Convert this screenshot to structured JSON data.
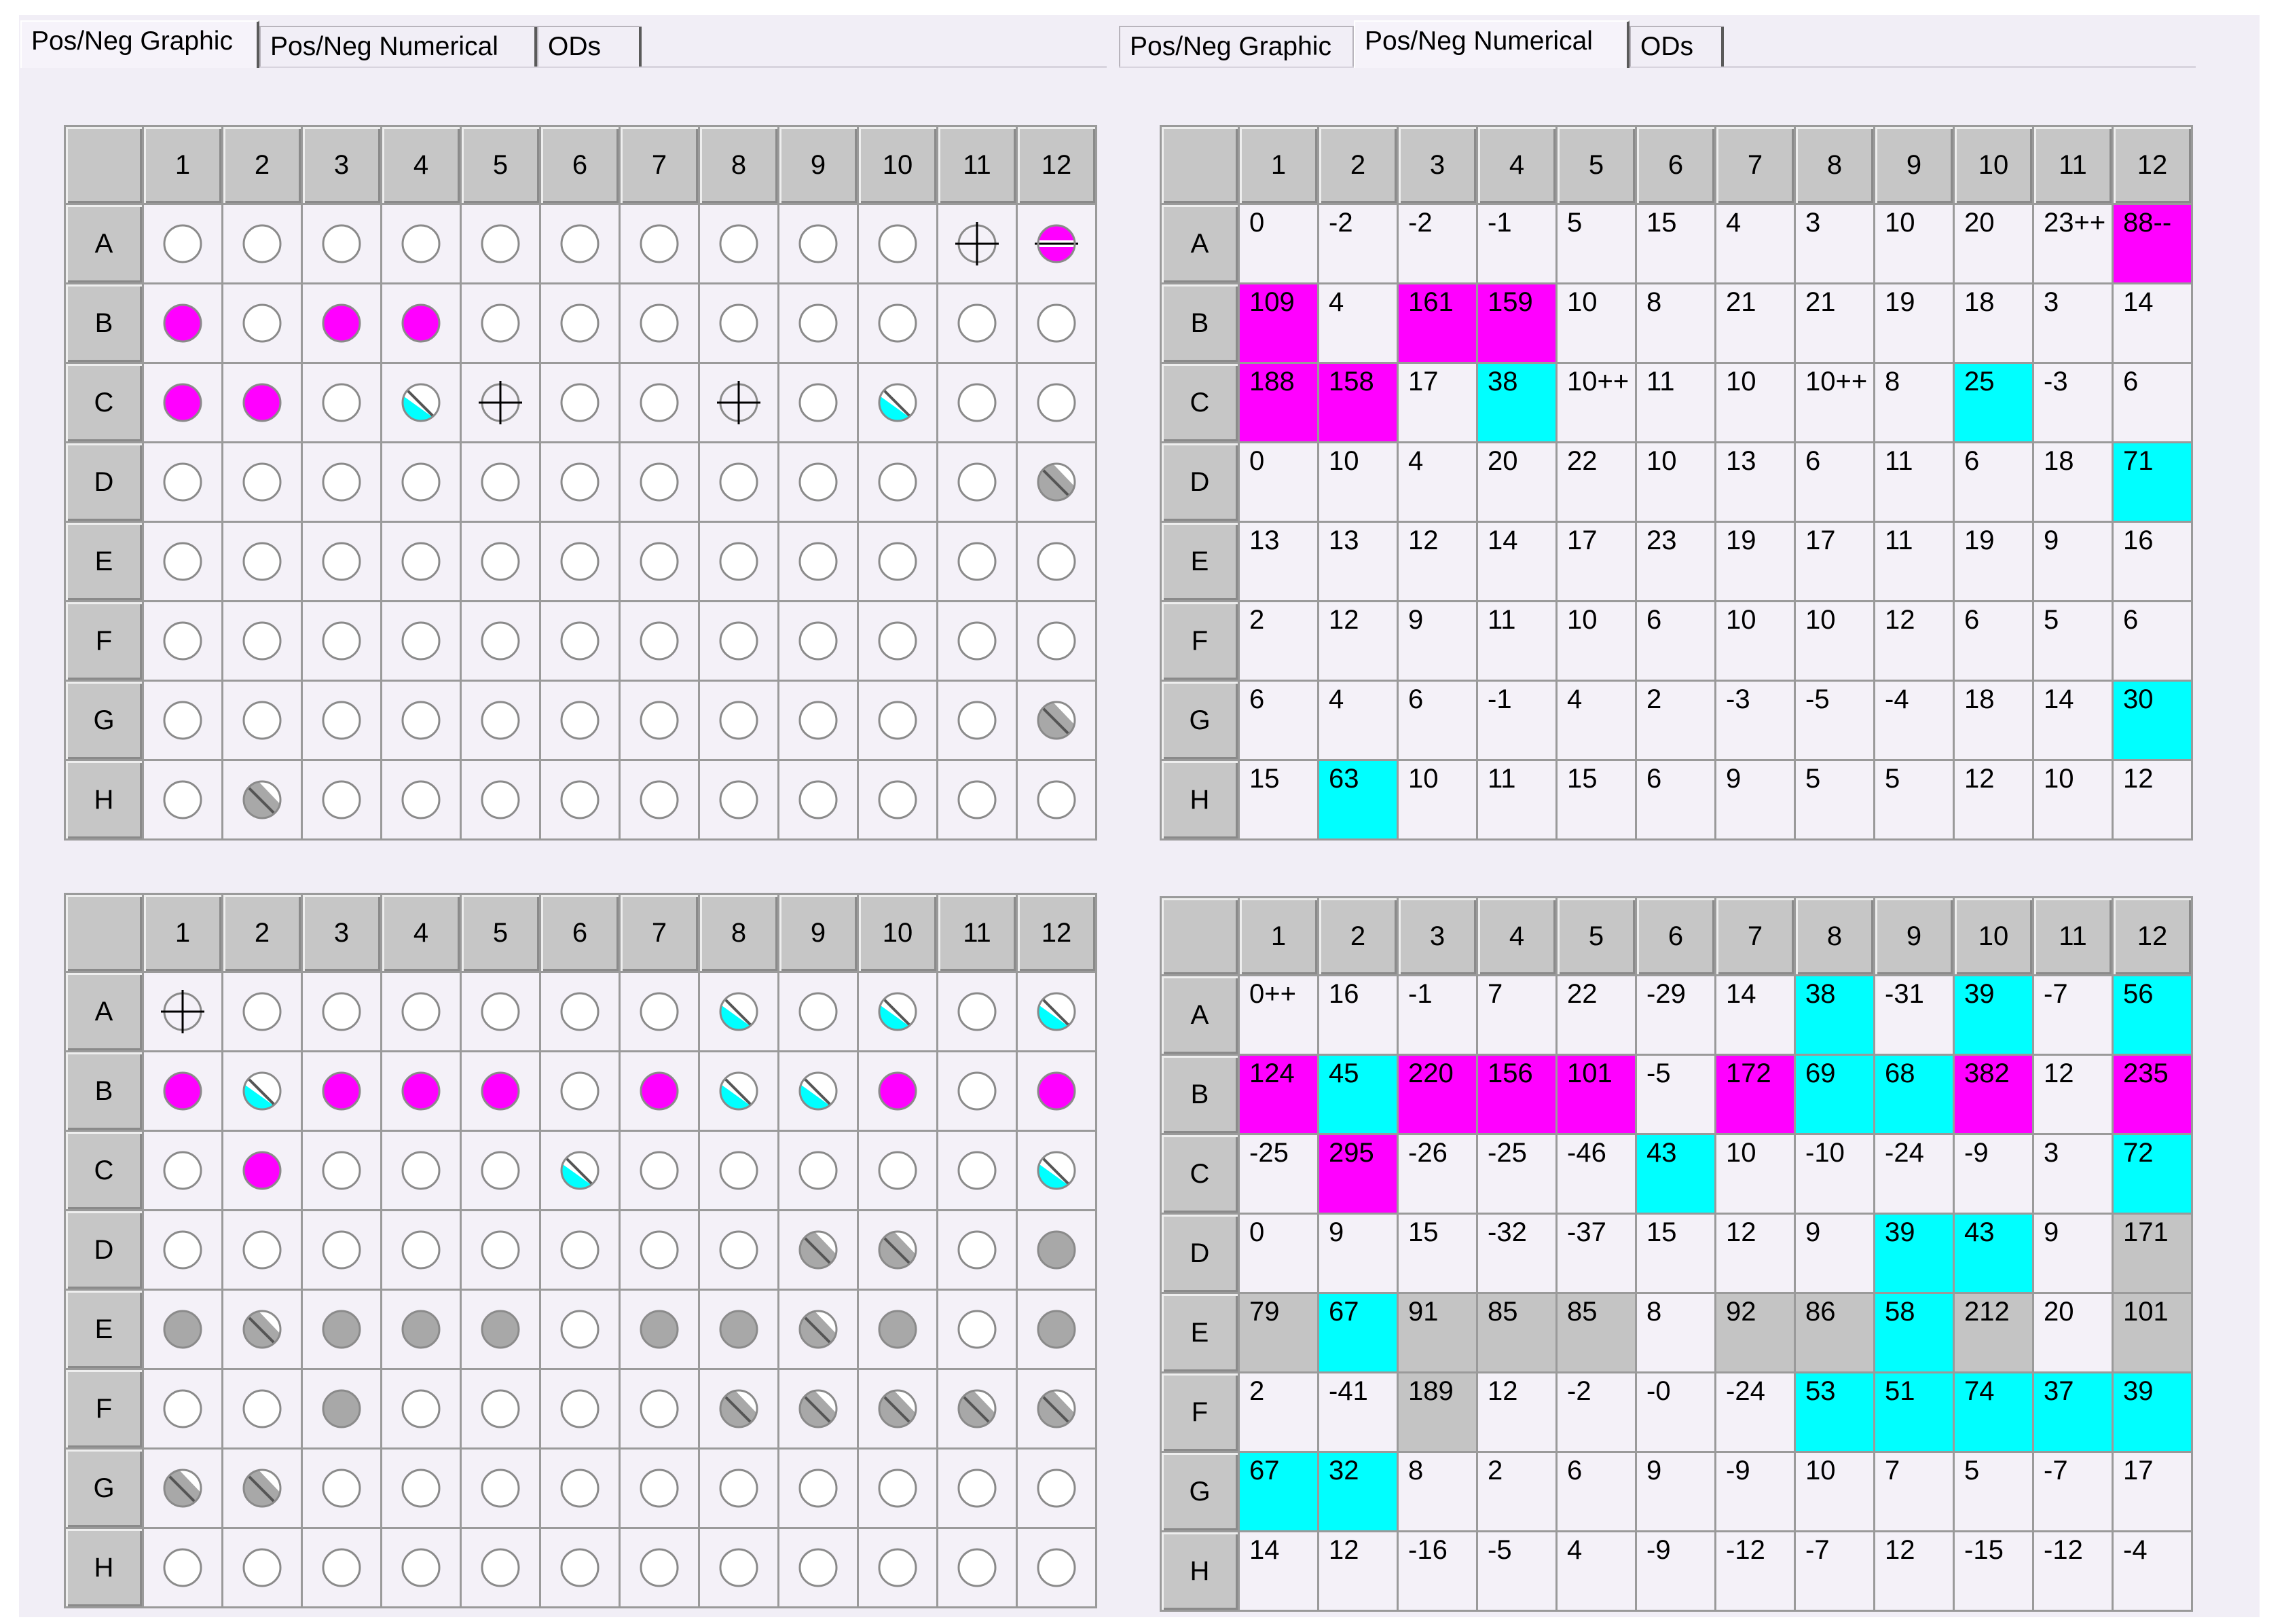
{
  "tabs": {
    "graphic": "Pos/Neg Graphic",
    "numerical": "Pos/Neg Numerical",
    "ods": "ODs"
  },
  "panels": {
    "left": {
      "active_tab": "graphic"
    },
    "right": {
      "active_tab": "numerical"
    }
  },
  "columns": [
    "1",
    "2",
    "3",
    "4",
    "5",
    "6",
    "7",
    "8",
    "9",
    "10",
    "11",
    "12"
  ],
  "rows": [
    "A",
    "B",
    "C",
    "D",
    "E",
    "F",
    "G",
    "H"
  ],
  "colors": {
    "magenta": "#ff00ff",
    "cyan": "#00ffff",
    "gray": "#c4c4c4",
    "empty": "#f4f1f8"
  },
  "legend_codes": {
    "o": "empty-circle",
    "M": "filled-magenta",
    "G": "filled-gray",
    "c": "half-cyan",
    "g": "half-gray",
    "X": "crosshair",
    "m": "half-magenta-banded"
  },
  "plates": [
    {
      "graphic": [
        [
          "o",
          "o",
          "o",
          "o",
          "o",
          "o",
          "o",
          "o",
          "o",
          "o",
          "X",
          "m"
        ],
        [
          "M",
          "o",
          "M",
          "M",
          "o",
          "o",
          "o",
          "o",
          "o",
          "o",
          "o",
          "o"
        ],
        [
          "M",
          "M",
          "o",
          "c",
          "X",
          "o",
          "o",
          "X",
          "o",
          "c",
          "o",
          "o"
        ],
        [
          "o",
          "o",
          "o",
          "o",
          "o",
          "o",
          "o",
          "o",
          "o",
          "o",
          "o",
          "g"
        ],
        [
          "o",
          "o",
          "o",
          "o",
          "o",
          "o",
          "o",
          "o",
          "o",
          "o",
          "o",
          "o"
        ],
        [
          "o",
          "o",
          "o",
          "o",
          "o",
          "o",
          "o",
          "o",
          "o",
          "o",
          "o",
          "o"
        ],
        [
          "o",
          "o",
          "o",
          "o",
          "o",
          "o",
          "o",
          "o",
          "o",
          "o",
          "o",
          "g"
        ],
        [
          "o",
          "g",
          "o",
          "o",
          "o",
          "o",
          "o",
          "o",
          "o",
          "o",
          "o",
          "o"
        ]
      ],
      "numerical": [
        [
          "0",
          "-2",
          "-2",
          "-1",
          "5",
          "15",
          "4",
          "3",
          "10",
          "20",
          "23++",
          "88--"
        ],
        [
          "109",
          "4",
          "161",
          "159",
          "10",
          "8",
          "21",
          "21",
          "19",
          "18",
          "3",
          "14"
        ],
        [
          "188",
          "158",
          "17",
          "38",
          "10++",
          "11",
          "10",
          "10++",
          "8",
          "25",
          "-3",
          "6"
        ],
        [
          "0",
          "10",
          "4",
          "20",
          "22",
          "10",
          "13",
          "6",
          "11",
          "6",
          "18",
          "71"
        ],
        [
          "13",
          "13",
          "12",
          "14",
          "17",
          "23",
          "19",
          "17",
          "11",
          "19",
          "9",
          "16"
        ],
        [
          "2",
          "12",
          "9",
          "11",
          "10",
          "6",
          "10",
          "10",
          "12",
          "6",
          "5",
          "6"
        ],
        [
          "6",
          "4",
          "6",
          "-1",
          "4",
          "2",
          "-3",
          "-5",
          "-4",
          "18",
          "14",
          "30"
        ],
        [
          "15",
          "63",
          "10",
          "11",
          "15",
          "6",
          "9",
          "5",
          "5",
          "12",
          "10",
          "12"
        ]
      ],
      "numerical_fill": [
        [
          "",
          "",
          "",
          "",
          "",
          "",
          "",
          "",
          "",
          "",
          "",
          "m"
        ],
        [
          "m",
          "",
          "m",
          "m",
          "",
          "",
          "",
          "",
          "",
          "",
          "",
          ""
        ],
        [
          "m",
          "m",
          "",
          "c",
          "",
          "",
          "",
          "",
          "",
          "c",
          "",
          ""
        ],
        [
          "",
          "",
          "",
          "",
          "",
          "",
          "",
          "",
          "",
          "",
          "",
          "c"
        ],
        [
          "",
          "",
          "",
          "",
          "",
          "",
          "",
          "",
          "",
          "",
          "",
          ""
        ],
        [
          "",
          "",
          "",
          "",
          "",
          "",
          "",
          "",
          "",
          "",
          "",
          ""
        ],
        [
          "",
          "",
          "",
          "",
          "",
          "",
          "",
          "",
          "",
          "",
          "",
          "c"
        ],
        [
          "",
          "c",
          "",
          "",
          "",
          "",
          "",
          "",
          "",
          "",
          "",
          ""
        ]
      ]
    },
    {
      "graphic": [
        [
          "X",
          "o",
          "o",
          "o",
          "o",
          "o",
          "o",
          "c",
          "o",
          "c",
          "o",
          "c"
        ],
        [
          "M",
          "c",
          "M",
          "M",
          "M",
          "o",
          "M",
          "c",
          "c",
          "M",
          "o",
          "M"
        ],
        [
          "o",
          "M",
          "o",
          "o",
          "o",
          "c",
          "o",
          "o",
          "o",
          "o",
          "o",
          "c"
        ],
        [
          "o",
          "o",
          "o",
          "o",
          "o",
          "o",
          "o",
          "o",
          "g",
          "g",
          "o",
          "G"
        ],
        [
          "G",
          "g",
          "G",
          "G",
          "G",
          "o",
          "G",
          "G",
          "g",
          "G",
          "o",
          "G"
        ],
        [
          "o",
          "o",
          "G",
          "o",
          "o",
          "o",
          "o",
          "g",
          "g",
          "g",
          "g",
          "g"
        ],
        [
          "g",
          "g",
          "o",
          "o",
          "o",
          "o",
          "o",
          "o",
          "o",
          "o",
          "o",
          "o"
        ],
        [
          "o",
          "o",
          "o",
          "o",
          "o",
          "o",
          "o",
          "o",
          "o",
          "o",
          "o",
          "o"
        ]
      ],
      "numerical": [
        [
          "0++",
          "16",
          "-1",
          "7",
          "22",
          "-29",
          "14",
          "38",
          "-31",
          "39",
          "-7",
          "56"
        ],
        [
          "124",
          "45",
          "220",
          "156",
          "101",
          "-5",
          "172",
          "69",
          "68",
          "382",
          "12",
          "235"
        ],
        [
          "-25",
          "295",
          "-26",
          "-25",
          "-46",
          "43",
          "10",
          "-10",
          "-24",
          "-9",
          "3",
          "72"
        ],
        [
          "0",
          "9",
          "15",
          "-32",
          "-37",
          "15",
          "12",
          "9",
          "39",
          "43",
          "9",
          "171"
        ],
        [
          "79",
          "67",
          "91",
          "85",
          "85",
          "8",
          "92",
          "86",
          "58",
          "212",
          "20",
          "101"
        ],
        [
          "2",
          "-41",
          "189",
          "12",
          "-2",
          "-0",
          "-24",
          "53",
          "51",
          "74",
          "37",
          "39"
        ],
        [
          "67",
          "32",
          "8",
          "2",
          "6",
          "9",
          "-9",
          "10",
          "7",
          "5",
          "-7",
          "17"
        ],
        [
          "14",
          "12",
          "-16",
          "-5",
          "4",
          "-9",
          "-12",
          "-7",
          "12",
          "-15",
          "-12",
          "-4"
        ]
      ],
      "numerical_fill": [
        [
          "",
          "",
          "",
          "",
          "",
          "",
          "",
          "c",
          "",
          "c",
          "",
          "c"
        ],
        [
          "m",
          "c",
          "m",
          "m",
          "m",
          "",
          "m",
          "c",
          "c",
          "m",
          "",
          "m"
        ],
        [
          "",
          "m",
          "",
          "",
          "",
          "c",
          "",
          "",
          "",
          "",
          "",
          "c"
        ],
        [
          "",
          "",
          "",
          "",
          "",
          "",
          "",
          "",
          "c",
          "c",
          "",
          "g"
        ],
        [
          "g",
          "c",
          "g",
          "g",
          "g",
          "",
          "g",
          "g",
          "c",
          "g",
          "",
          "g"
        ],
        [
          "",
          "",
          "g",
          "",
          "",
          "",
          "",
          "c",
          "c",
          "c",
          "c",
          "c"
        ],
        [
          "c",
          "c",
          "",
          "",
          "",
          "",
          "",
          "",
          "",
          "",
          "",
          ""
        ],
        [
          "",
          "",
          "",
          "",
          "",
          "",
          "",
          "",
          "",
          "",
          "",
          ""
        ]
      ]
    }
  ]
}
